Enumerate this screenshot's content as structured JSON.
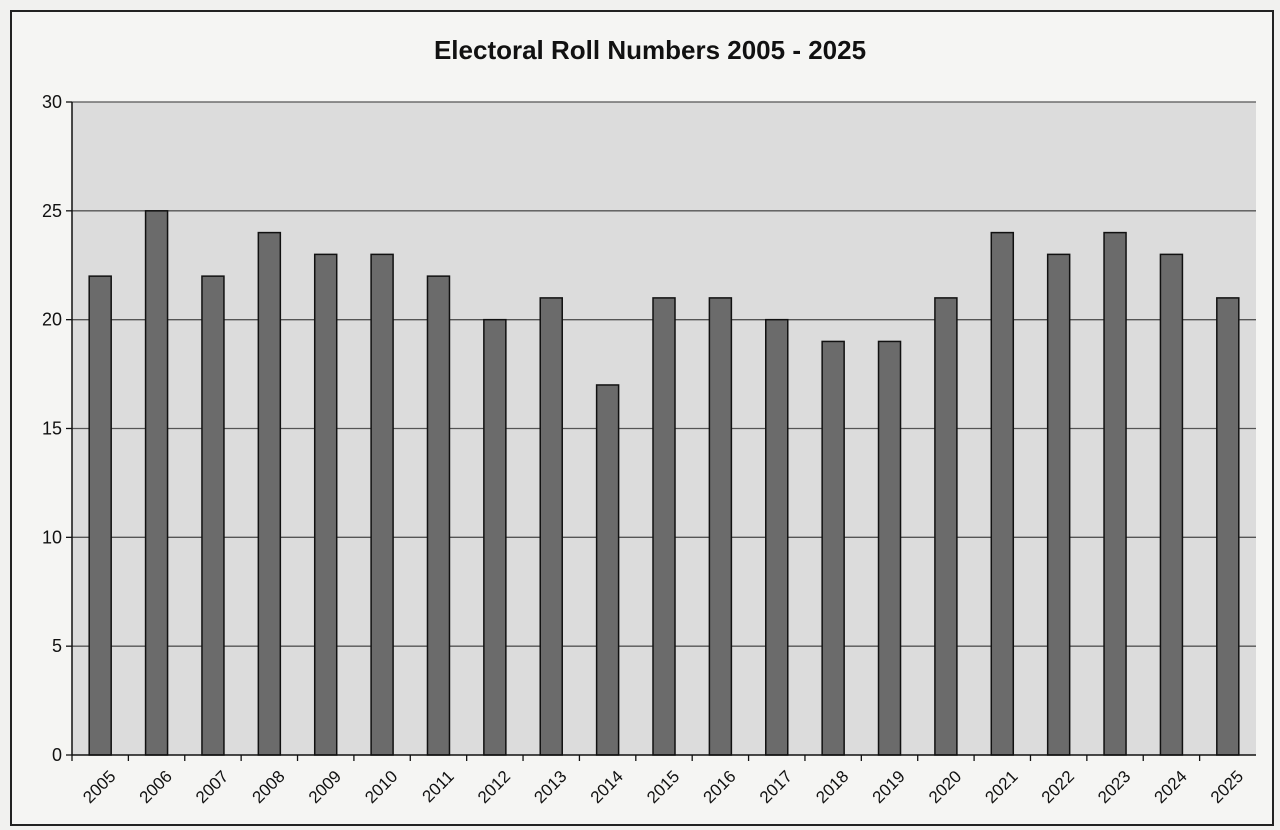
{
  "chart_data": {
    "type": "bar",
    "title": "Electoral Roll Numbers 2005 - 2025",
    "xlabel": "",
    "ylabel": "",
    "categories": [
      "2005",
      "2006",
      "2007",
      "2008",
      "2009",
      "2010",
      "2011",
      "2012",
      "2013",
      "2014",
      "2015",
      "2016",
      "2017",
      "2018",
      "2019",
      "2020",
      "2021",
      "2022",
      "2023",
      "2024",
      "2025"
    ],
    "values": [
      22,
      25,
      22,
      24,
      23,
      23,
      22,
      20,
      21,
      17,
      21,
      21,
      20,
      19,
      19,
      21,
      24,
      23,
      24,
      23,
      21
    ],
    "ylim": [
      0,
      30
    ],
    "yticks": [
      0,
      5,
      10,
      15,
      20,
      25,
      30
    ],
    "grid": true,
    "legend": "none",
    "colors": {
      "bar": "#6b6b6b",
      "plot_background": "#dcdcdc",
      "page_background": "#f5f5f3"
    }
  }
}
